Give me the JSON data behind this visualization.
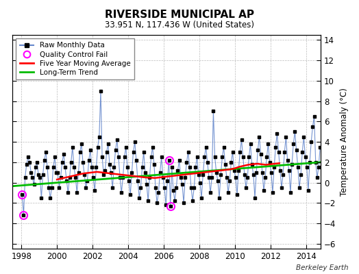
{
  "title": "RIVERSIDE MUNICIPAL AP",
  "subtitle": "33.951 N, 117.436 W (United States)",
  "ylabel": "Temperature Anomaly (°C)",
  "watermark": "Berkeley Earth",
  "ylim": [
    -6.5,
    14.5
  ],
  "xlim": [
    1997.5,
    2014.83
  ],
  "yticks": [
    -6,
    -4,
    -2,
    0,
    2,
    4,
    6,
    8,
    10,
    12,
    14
  ],
  "xticks": [
    1998,
    2000,
    2002,
    2004,
    2006,
    2008,
    2010,
    2012,
    2014
  ],
  "raw_color": "#6688cc",
  "ma_color": "#ff0000",
  "trend_color": "#00bb00",
  "qc_color": "#ff00ff",
  "background": "#ffffff",
  "raw_monthly": [
    [
      1998.042,
      -1.2
    ],
    [
      1998.125,
      -3.2
    ],
    [
      1998.208,
      0.5
    ],
    [
      1998.292,
      1.8
    ],
    [
      1998.375,
      2.5
    ],
    [
      1998.458,
      2.0
    ],
    [
      1998.542,
      1.0
    ],
    [
      1998.625,
      0.5
    ],
    [
      1998.708,
      -0.2
    ],
    [
      1998.792,
      1.5
    ],
    [
      1998.875,
      2.0
    ],
    [
      1998.958,
      0.8
    ],
    [
      1999.042,
      0.5
    ],
    [
      1999.125,
      -1.5
    ],
    [
      1999.208,
      0.8
    ],
    [
      1999.292,
      2.2
    ],
    [
      1999.375,
      3.0
    ],
    [
      1999.458,
      1.5
    ],
    [
      1999.542,
      -0.5
    ],
    [
      1999.625,
      -1.5
    ],
    [
      1999.708,
      -0.5
    ],
    [
      1999.792,
      1.5
    ],
    [
      1999.875,
      2.5
    ],
    [
      1999.958,
      1.0
    ],
    [
      2000.042,
      1.0
    ],
    [
      2000.125,
      -0.5
    ],
    [
      2000.208,
      0.5
    ],
    [
      2000.292,
      2.0
    ],
    [
      2000.375,
      2.8
    ],
    [
      2000.458,
      1.5
    ],
    [
      2000.542,
      0.2
    ],
    [
      2000.625,
      -1.0
    ],
    [
      2000.708,
      0.5
    ],
    [
      2000.792,
      2.0
    ],
    [
      2000.875,
      3.5
    ],
    [
      2000.958,
      1.5
    ],
    [
      2001.042,
      0.5
    ],
    [
      2001.125,
      -1.0
    ],
    [
      2001.208,
      1.0
    ],
    [
      2001.292,
      3.0
    ],
    [
      2001.375,
      3.8
    ],
    [
      2001.458,
      2.0
    ],
    [
      2001.542,
      0.8
    ],
    [
      2001.625,
      -0.5
    ],
    [
      2001.708,
      0.2
    ],
    [
      2001.792,
      2.2
    ],
    [
      2001.875,
      3.2
    ],
    [
      2001.958,
      1.5
    ],
    [
      2002.042,
      0.5
    ],
    [
      2002.125,
      -0.8
    ],
    [
      2002.208,
      1.5
    ],
    [
      2002.292,
      3.5
    ],
    [
      2002.375,
      4.5
    ],
    [
      2002.458,
      9.0
    ],
    [
      2002.542,
      2.5
    ],
    [
      2002.625,
      0.8
    ],
    [
      2002.708,
      1.2
    ],
    [
      2002.792,
      3.0
    ],
    [
      2002.875,
      3.8
    ],
    [
      2002.958,
      1.8
    ],
    [
      2003.042,
      1.0
    ],
    [
      2003.125,
      -0.5
    ],
    [
      2003.208,
      1.5
    ],
    [
      2003.292,
      3.2
    ],
    [
      2003.375,
      4.2
    ],
    [
      2003.458,
      2.5
    ],
    [
      2003.542,
      0.5
    ],
    [
      2003.625,
      -1.0
    ],
    [
      2003.708,
      0.5
    ],
    [
      2003.792,
      2.5
    ],
    [
      2003.875,
      3.5
    ],
    [
      2003.958,
      1.5
    ],
    [
      2004.042,
      0.2
    ],
    [
      2004.125,
      -1.2
    ],
    [
      2004.208,
      1.0
    ],
    [
      2004.292,
      3.0
    ],
    [
      2004.375,
      4.0
    ],
    [
      2004.458,
      2.2
    ],
    [
      2004.542,
      0.2
    ],
    [
      2004.625,
      -1.5
    ],
    [
      2004.708,
      -0.5
    ],
    [
      2004.792,
      1.5
    ],
    [
      2004.875,
      3.0
    ],
    [
      2004.958,
      1.0
    ],
    [
      2005.042,
      -0.2
    ],
    [
      2005.125,
      -1.8
    ],
    [
      2005.208,
      0.5
    ],
    [
      2005.292,
      2.5
    ],
    [
      2005.375,
      3.5
    ],
    [
      2005.458,
      1.8
    ],
    [
      2005.542,
      -0.5
    ],
    [
      2005.625,
      -2.0
    ],
    [
      2005.708,
      -1.0
    ],
    [
      2005.792,
      1.0
    ],
    [
      2005.875,
      2.5
    ],
    [
      2005.958,
      0.5
    ],
    [
      2006.042,
      -0.5
    ],
    [
      2006.125,
      -2.2
    ],
    [
      2006.208,
      0.2
    ],
    [
      2006.292,
      2.2
    ],
    [
      2006.375,
      -2.3
    ],
    [
      2006.458,
      1.5
    ],
    [
      2006.542,
      -0.8
    ],
    [
      2006.625,
      -1.8
    ],
    [
      2006.708,
      -0.5
    ],
    [
      2006.792,
      1.2
    ],
    [
      2006.875,
      2.2
    ],
    [
      2006.958,
      0.5
    ],
    [
      2007.042,
      -0.2
    ],
    [
      2007.125,
      -2.0
    ],
    [
      2007.208,
      0.5
    ],
    [
      2007.292,
      2.0
    ],
    [
      2007.375,
      3.0
    ],
    [
      2007.458,
      1.5
    ],
    [
      2007.542,
      -0.5
    ],
    [
      2007.625,
      -1.8
    ],
    [
      2007.708,
      -0.5
    ],
    [
      2007.792,
      1.5
    ],
    [
      2007.875,
      2.5
    ],
    [
      2007.958,
      0.8
    ],
    [
      2008.042,
      0.0
    ],
    [
      2008.125,
      -1.5
    ],
    [
      2008.208,
      0.8
    ],
    [
      2008.292,
      2.5
    ],
    [
      2008.375,
      3.5
    ],
    [
      2008.458,
      2.0
    ],
    [
      2008.542,
      0.5
    ],
    [
      2008.625,
      -1.0
    ],
    [
      2008.708,
      0.5
    ],
    [
      2008.792,
      7.0
    ],
    [
      2008.875,
      2.5
    ],
    [
      2008.958,
      1.0
    ],
    [
      2009.042,
      0.2
    ],
    [
      2009.125,
      -1.5
    ],
    [
      2009.208,
      0.8
    ],
    [
      2009.292,
      2.5
    ],
    [
      2009.375,
      3.5
    ],
    [
      2009.458,
      1.8
    ],
    [
      2009.542,
      0.5
    ],
    [
      2009.625,
      -1.0
    ],
    [
      2009.708,
      0.2
    ],
    [
      2009.792,
      2.0
    ],
    [
      2009.875,
      3.0
    ],
    [
      2009.958,
      1.2
    ],
    [
      2010.042,
      0.5
    ],
    [
      2010.125,
      -1.2
    ],
    [
      2010.208,
      1.2
    ],
    [
      2010.292,
      3.0
    ],
    [
      2010.375,
      4.2
    ],
    [
      2010.458,
      2.5
    ],
    [
      2010.542,
      0.8
    ],
    [
      2010.625,
      -0.5
    ],
    [
      2010.708,
      0.5
    ],
    [
      2010.792,
      2.5
    ],
    [
      2010.875,
      3.8
    ],
    [
      2010.958,
      1.8
    ],
    [
      2011.042,
      0.8
    ],
    [
      2011.125,
      -1.5
    ],
    [
      2011.208,
      1.0
    ],
    [
      2011.292,
      3.2
    ],
    [
      2011.375,
      4.5
    ],
    [
      2011.458,
      2.8
    ],
    [
      2011.542,
      1.0
    ],
    [
      2011.625,
      -0.8
    ],
    [
      2011.708,
      0.5
    ],
    [
      2011.792,
      2.5
    ],
    [
      2011.875,
      3.8
    ],
    [
      2011.958,
      2.0
    ],
    [
      2012.042,
      1.0
    ],
    [
      2012.125,
      -1.0
    ],
    [
      2012.208,
      1.5
    ],
    [
      2012.292,
      3.5
    ],
    [
      2012.375,
      4.8
    ],
    [
      2012.458,
      3.0
    ],
    [
      2012.542,
      1.2
    ],
    [
      2012.625,
      -0.5
    ],
    [
      2012.708,
      0.8
    ],
    [
      2012.792,
      3.0
    ],
    [
      2012.875,
      4.5
    ],
    [
      2012.958,
      2.2
    ],
    [
      2013.042,
      1.2
    ],
    [
      2013.125,
      -1.0
    ],
    [
      2013.208,
      1.8
    ],
    [
      2013.292,
      3.8
    ],
    [
      2013.375,
      5.0
    ],
    [
      2013.458,
      3.2
    ],
    [
      2013.542,
      1.5
    ],
    [
      2013.625,
      -0.5
    ],
    [
      2013.708,
      0.8
    ],
    [
      2013.792,
      3.0
    ],
    [
      2013.875,
      4.5
    ],
    [
      2013.958,
      2.5
    ],
    [
      2014.042,
      1.5
    ],
    [
      2014.125,
      -0.8
    ],
    [
      2014.208,
      2.0
    ],
    [
      2014.292,
      4.0
    ],
    [
      2014.375,
      5.5
    ],
    [
      2014.458,
      6.5
    ],
    [
      2014.542,
      2.0
    ],
    [
      2014.625,
      0.5
    ],
    [
      2014.708,
      1.5
    ],
    [
      2014.792,
      3.5
    ]
  ],
  "qc_fail": [
    [
      1998.042,
      -1.2
    ],
    [
      1998.125,
      -3.2
    ],
    [
      2006.292,
      2.2
    ],
    [
      2006.375,
      -2.3
    ]
  ],
  "moving_avg": [
    [
      2000.0,
      0.3
    ],
    [
      2000.25,
      0.4
    ],
    [
      2000.5,
      0.5
    ],
    [
      2000.75,
      0.6
    ],
    [
      2001.0,
      0.7
    ],
    [
      2001.25,
      0.8
    ],
    [
      2001.5,
      0.9
    ],
    [
      2001.75,
      0.95
    ],
    [
      2002.0,
      1.0
    ],
    [
      2002.25,
      1.05
    ],
    [
      2002.5,
      1.0
    ],
    [
      2002.75,
      0.95
    ],
    [
      2003.0,
      0.9
    ],
    [
      2003.25,
      0.85
    ],
    [
      2003.5,
      0.8
    ],
    [
      2003.75,
      0.75
    ],
    [
      2004.0,
      0.7
    ],
    [
      2004.25,
      0.65
    ],
    [
      2004.5,
      0.6
    ],
    [
      2004.75,
      0.55
    ],
    [
      2005.0,
      0.5
    ],
    [
      2005.25,
      0.48
    ],
    [
      2005.5,
      0.45
    ],
    [
      2005.75,
      0.5
    ],
    [
      2006.0,
      0.55
    ],
    [
      2006.25,
      0.6
    ],
    [
      2006.5,
      0.65
    ],
    [
      2006.75,
      0.7
    ],
    [
      2007.0,
      0.75
    ],
    [
      2007.25,
      0.8
    ],
    [
      2007.5,
      0.85
    ],
    [
      2007.75,
      0.9
    ],
    [
      2008.0,
      0.95
    ],
    [
      2008.25,
      1.0
    ],
    [
      2008.5,
      1.05
    ],
    [
      2008.75,
      1.1
    ],
    [
      2009.0,
      1.15
    ],
    [
      2009.25,
      1.2
    ],
    [
      2009.5,
      1.25
    ],
    [
      2009.75,
      1.3
    ],
    [
      2010.0,
      1.4
    ],
    [
      2010.25,
      1.55
    ],
    [
      2010.5,
      1.65
    ],
    [
      2010.75,
      1.75
    ],
    [
      2011.0,
      1.8
    ],
    [
      2011.25,
      1.85
    ],
    [
      2011.5,
      1.8
    ],
    [
      2011.75,
      1.75
    ],
    [
      2012.0,
      1.8
    ],
    [
      2012.25,
      1.85
    ],
    [
      2012.5,
      1.9
    ]
  ],
  "trend_x": [
    1997.5,
    2014.83
  ],
  "trend_y": [
    -0.35,
    2.0
  ]
}
